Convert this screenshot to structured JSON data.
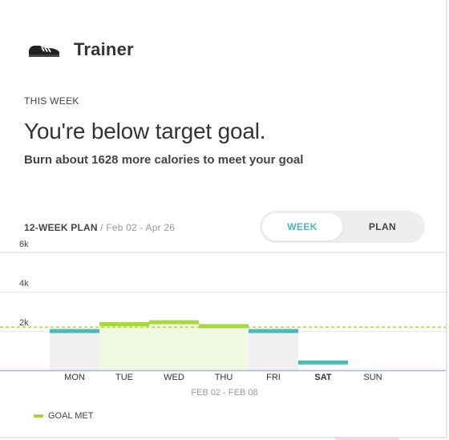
{
  "header": {
    "icon": "shoe-icon",
    "title": "Trainer"
  },
  "summary": {
    "section_label": "THIS WEEK",
    "headline": "You're below target goal.",
    "subline_prefix": "Burn about ",
    "subline_number": "1628",
    "subline_suffix": " more calories to meet your goal"
  },
  "plan": {
    "name": "12-WEEK PLAN",
    "separator": " / ",
    "range": "Feb 02 - Apr 26"
  },
  "toggle": {
    "week_label": "WEEK",
    "plan_label": "PLAN",
    "selected": "WEEK"
  },
  "colors": {
    "goal_met": "#a8d840",
    "below_goal": "#4db8b8",
    "goal_line": "#a8d840",
    "goal_met_fill": "#f1f9e3",
    "below_fill": "#f0f0f0"
  },
  "chart_data": {
    "type": "bar",
    "categories": [
      "MON",
      "TUE",
      "WED",
      "THU",
      "FRI",
      "SAT",
      "SUN"
    ],
    "current_category": "SAT",
    "values": [
      2100,
      2450,
      2550,
      2350,
      2100,
      500,
      0
    ],
    "goal_met": [
      false,
      true,
      true,
      true,
      false,
      false,
      false
    ],
    "goal": 2200,
    "yticks": [
      "2k",
      "4k",
      "6k"
    ],
    "ytick_values": [
      2000,
      4000,
      6000
    ],
    "ylim": [
      0,
      6000
    ],
    "xlabel": "FEB 02 - FEB 08",
    "legend": [
      "GOAL MET"
    ],
    "legend_placement": "bottom-left"
  }
}
